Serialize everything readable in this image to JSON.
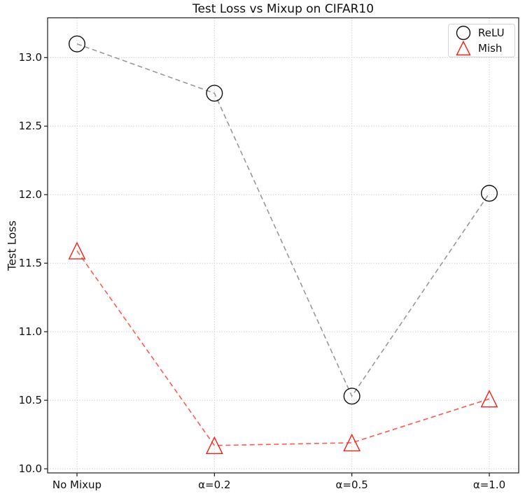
{
  "chart_data": {
    "type": "line",
    "title": "Test Loss vs Mixup on CIFAR10",
    "xlabel": "",
    "ylabel": "Test Loss",
    "categories": [
      "No Mixup",
      "α=0.2",
      "α=0.5",
      "α=1.0"
    ],
    "series": [
      {
        "name": "ReLU",
        "values": [
          13.1,
          12.74,
          10.53,
          12.01
        ],
        "marker": "circle",
        "marker_filled": false,
        "marker_color": "#111111",
        "line_color": "#999999",
        "linestyle": "dashed"
      },
      {
        "name": "Mish",
        "values": [
          11.59,
          10.17,
          10.19,
          10.51
        ],
        "marker": "triangle-up",
        "marker_filled": false,
        "marker_color": "#f42015",
        "line_color": "#ff5b55",
        "linestyle": "dashed"
      }
    ],
    "ylim": [
      9.97,
      13.29
    ],
    "yticks": [
      "10.0",
      "10.5",
      "11.0",
      "11.5",
      "12.0",
      "12.5",
      "13.0"
    ],
    "grid": true,
    "grid_style": "dotted",
    "grid_color": "#cccccc",
    "legend": {
      "position": "upper right",
      "entries": [
        "ReLU",
        "Mish"
      ]
    }
  }
}
